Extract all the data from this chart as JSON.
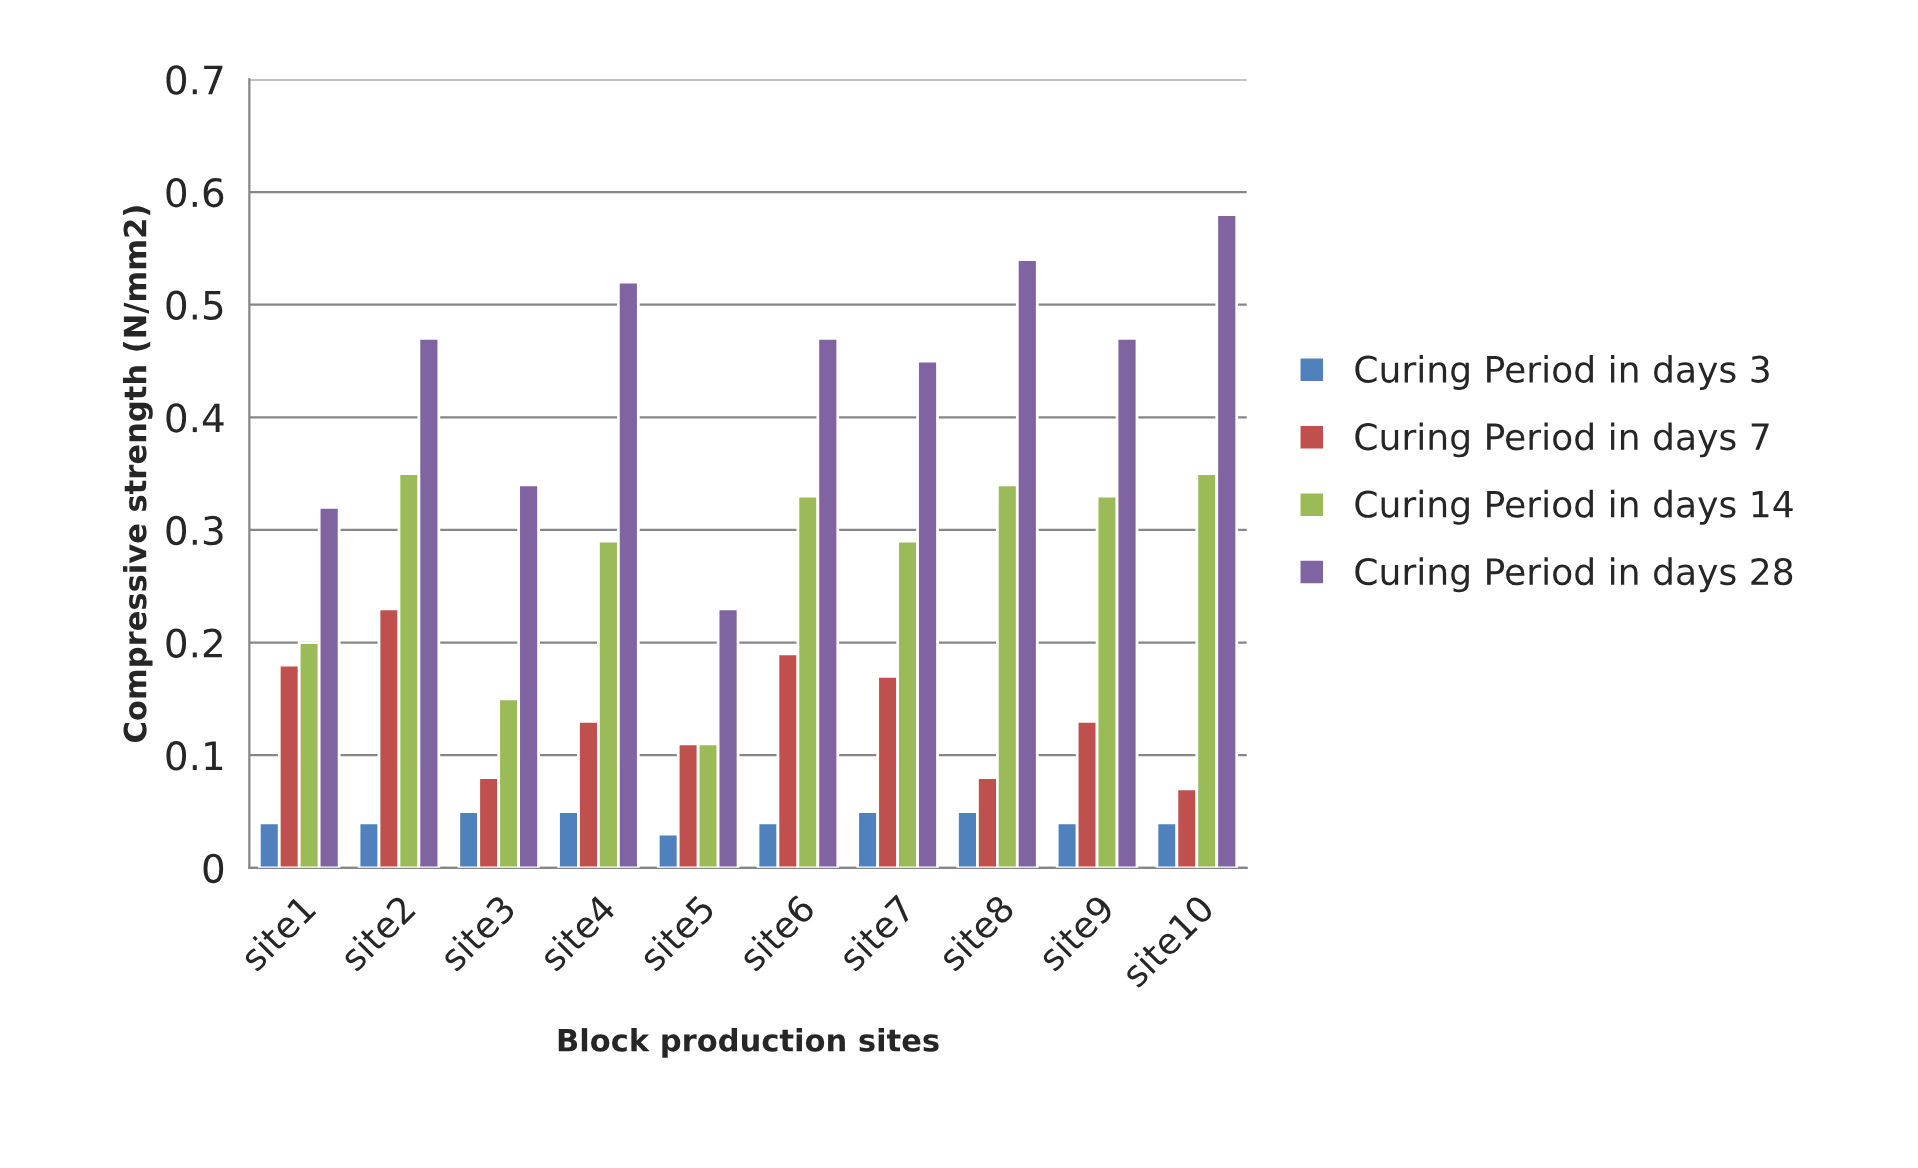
{
  "chart_data": {
    "type": "bar",
    "xlabel": "Block production sites",
    "ylabel": "Compressive strength (N/mm2)",
    "categories": [
      "site1",
      "site2",
      "site3",
      "site4",
      "site5",
      "site6",
      "site7",
      "site8",
      "site9",
      "site10"
    ],
    "series": [
      {
        "name": "Curing Period in days 3",
        "color": "#4f81bd",
        "values": [
          0.04,
          0.04,
          0.05,
          0.05,
          0.03,
          0.04,
          0.05,
          0.05,
          0.04,
          0.04
        ]
      },
      {
        "name": "Curing Period in days 7",
        "color": "#c0504d",
        "values": [
          0.18,
          0.23,
          0.08,
          0.13,
          0.11,
          0.19,
          0.17,
          0.08,
          0.13,
          0.07
        ]
      },
      {
        "name": "Curing Period in days 14",
        "color": "#9bbb59",
        "values": [
          0.2,
          0.35,
          0.15,
          0.29,
          0.11,
          0.33,
          0.29,
          0.34,
          0.33,
          0.35
        ]
      },
      {
        "name": "Curing Period in days 28",
        "color": "#8064a2",
        "values": [
          0.32,
          0.47,
          0.34,
          0.52,
          0.23,
          0.47,
          0.45,
          0.54,
          0.47,
          0.58
        ]
      }
    ],
    "ylim": [
      0,
      0.7
    ],
    "yticks": [
      0,
      0.1,
      0.2,
      0.3,
      0.4,
      0.5,
      0.6,
      0.7
    ],
    "grid": "y",
    "legend": "right"
  }
}
